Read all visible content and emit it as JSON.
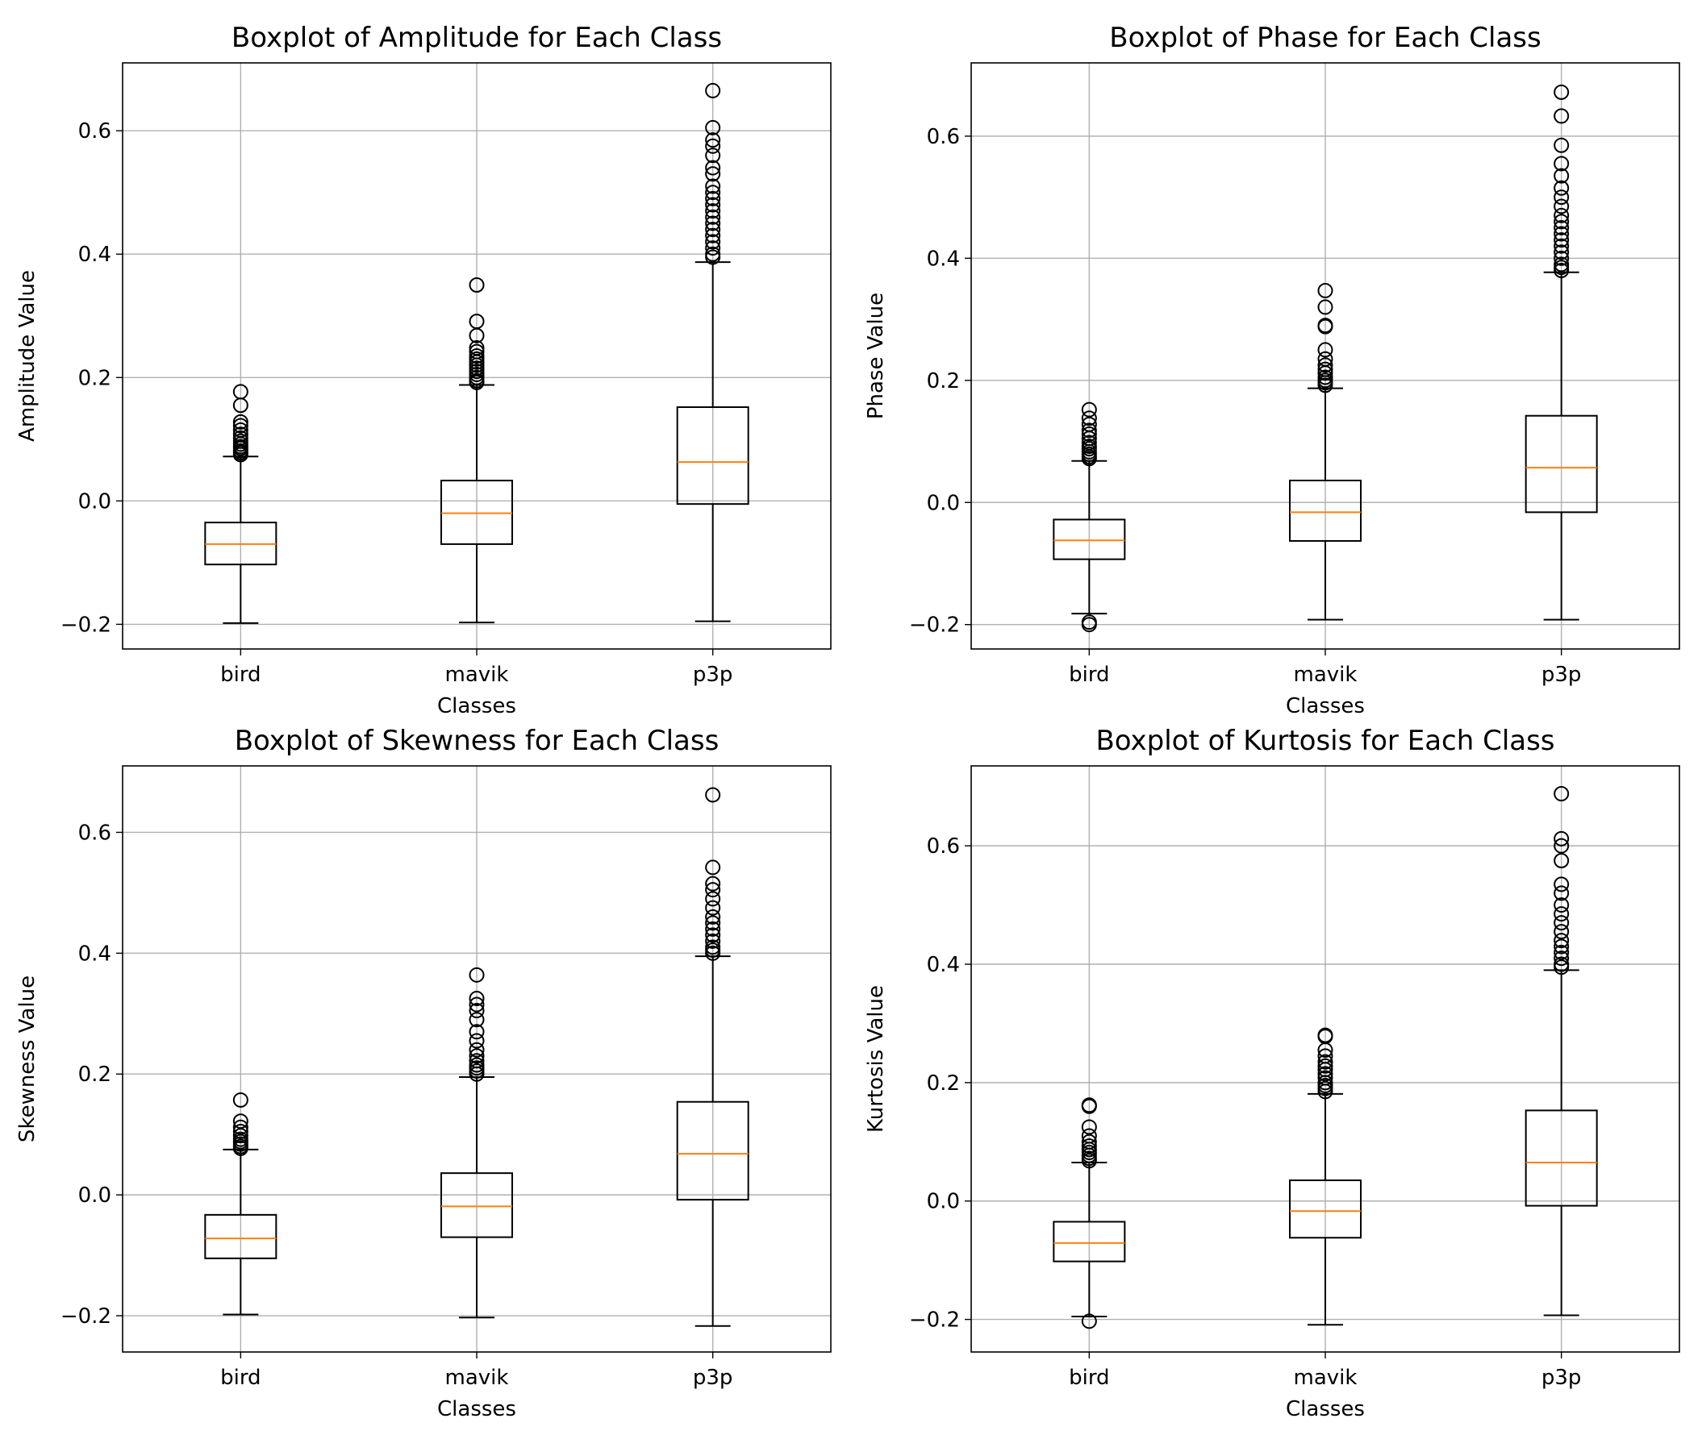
{
  "figure": {
    "background": "#ffffff"
  },
  "style": {
    "median_color": "#ff7f0e",
    "box_color": "#000000",
    "grid_color": "#b0b0b0",
    "flier_color": "#000000"
  },
  "chart_data": [
    {
      "type": "boxplot",
      "title": "Boxplot of Amplitude for Each Class",
      "xlabel": "Classes",
      "ylabel": "Amplitude Value",
      "ylim": [
        -0.24,
        0.71
      ],
      "yticks": [
        -0.2,
        0.0,
        0.2,
        0.4,
        0.6
      ],
      "yticklabels": [
        "−0.2",
        "0.0",
        "0.2",
        "0.4",
        "0.6"
      ],
      "grid": true,
      "categories": [
        "bird",
        "mavik",
        "p3p"
      ],
      "boxes": [
        {
          "whislo": -0.198,
          "q1": -0.103,
          "med": -0.07,
          "q3": -0.035,
          "whishi": 0.072,
          "fliers": [
            0.177,
            0.155,
            0.128,
            0.122,
            0.115,
            0.108,
            0.102,
            0.097,
            0.092,
            0.088,
            0.085,
            0.081,
            0.078,
            0.075
          ]
        },
        {
          "whislo": -0.197,
          "q1": -0.07,
          "med": -0.02,
          "q3": 0.033,
          "whishi": 0.188,
          "fliers": [
            0.35,
            0.291,
            0.268,
            0.248,
            0.242,
            0.235,
            0.23,
            0.225,
            0.22,
            0.215,
            0.21,
            0.205,
            0.2,
            0.195,
            0.192
          ]
        },
        {
          "whislo": -0.195,
          "q1": -0.005,
          "med": 0.063,
          "q3": 0.152,
          "whishi": 0.387,
          "fliers": [
            0.665,
            0.605,
            0.585,
            0.575,
            0.56,
            0.54,
            0.53,
            0.51,
            0.5,
            0.49,
            0.48,
            0.47,
            0.46,
            0.45,
            0.44,
            0.43,
            0.42,
            0.41,
            0.4,
            0.395
          ]
        }
      ]
    },
    {
      "type": "boxplot",
      "title": "Boxplot of Phase for Each Class",
      "xlabel": "Classes",
      "ylabel": "Phase Value",
      "ylim": [
        -0.24,
        0.72
      ],
      "yticks": [
        -0.2,
        0.0,
        0.2,
        0.4,
        0.6
      ],
      "yticklabels": [
        "−0.2",
        "0.0",
        "0.2",
        "0.4",
        "0.6"
      ],
      "grid": true,
      "categories": [
        "bird",
        "mavik",
        "p3p"
      ],
      "boxes": [
        {
          "whislo": -0.182,
          "q1": -0.093,
          "med": -0.062,
          "q3": -0.028,
          "whishi": 0.068,
          "fliers": [
            -0.196,
            -0.2,
            0.152,
            0.138,
            0.128,
            0.118,
            0.112,
            0.105,
            0.098,
            0.092,
            0.088,
            0.083,
            0.079,
            0.075,
            0.072
          ]
        },
        {
          "whislo": -0.192,
          "q1": -0.063,
          "med": -0.016,
          "q3": 0.036,
          "whishi": 0.187,
          "fliers": [
            0.347,
            0.32,
            0.29,
            0.288,
            0.25,
            0.235,
            0.225,
            0.218,
            0.212,
            0.205,
            0.2,
            0.196,
            0.192
          ]
        },
        {
          "whislo": -0.192,
          "q1": -0.016,
          "med": 0.057,
          "q3": 0.142,
          "whishi": 0.377,
          "fliers": [
            0.672,
            0.633,
            0.585,
            0.555,
            0.535,
            0.515,
            0.5,
            0.485,
            0.47,
            0.46,
            0.45,
            0.44,
            0.43,
            0.42,
            0.41,
            0.4,
            0.39,
            0.385,
            0.38
          ]
        }
      ]
    },
    {
      "type": "boxplot",
      "title": "Boxplot of Skewness for Each Class",
      "xlabel": "Classes",
      "ylabel": "Skewness Value",
      "ylim": [
        -0.26,
        0.71
      ],
      "yticks": [
        -0.2,
        0.0,
        0.2,
        0.4,
        0.6
      ],
      "yticklabels": [
        "−0.2",
        "0.0",
        "0.2",
        "0.4",
        "0.6"
      ],
      "grid": true,
      "categories": [
        "bird",
        "mavik",
        "p3p"
      ],
      "boxes": [
        {
          "whislo": -0.198,
          "q1": -0.105,
          "med": -0.072,
          "q3": -0.033,
          "whishi": 0.075,
          "fliers": [
            0.157,
            0.122,
            0.112,
            0.105,
            0.098,
            0.092,
            0.088,
            0.084,
            0.08,
            0.077
          ]
        },
        {
          "whislo": -0.203,
          "q1": -0.07,
          "med": -0.019,
          "q3": 0.036,
          "whishi": 0.195,
          "fliers": [
            0.364,
            0.325,
            0.315,
            0.305,
            0.29,
            0.27,
            0.255,
            0.24,
            0.23,
            0.222,
            0.215,
            0.21,
            0.205,
            0.2
          ]
        },
        {
          "whislo": -0.217,
          "q1": -0.008,
          "med": 0.068,
          "q3": 0.154,
          "whishi": 0.395,
          "fliers": [
            0.662,
            0.542,
            0.515,
            0.505,
            0.49,
            0.475,
            0.46,
            0.45,
            0.44,
            0.43,
            0.42,
            0.41,
            0.405,
            0.4
          ]
        }
      ]
    },
    {
      "type": "boxplot",
      "title": "Boxplot of Kurtosis for Each Class",
      "xlabel": "Classes",
      "ylabel": "Kurtosis Value",
      "ylim": [
        -0.255,
        0.735
      ],
      "yticks": [
        -0.2,
        0.0,
        0.2,
        0.4,
        0.6
      ],
      "yticklabels": [
        "−0.2",
        "0.0",
        "0.2",
        "0.4",
        "0.6"
      ],
      "grid": true,
      "categories": [
        "bird",
        "mavik",
        "p3p"
      ],
      "boxes": [
        {
          "whislo": -0.195,
          "q1": -0.102,
          "med": -0.071,
          "q3": -0.035,
          "whishi": 0.065,
          "fliers": [
            -0.203,
            0.162,
            0.16,
            0.125,
            0.11,
            0.1,
            0.093,
            0.087,
            0.082,
            0.077,
            0.072,
            0.068
          ]
        },
        {
          "whislo": -0.209,
          "q1": -0.062,
          "med": -0.017,
          "q3": 0.035,
          "whishi": 0.181,
          "fliers": [
            0.28,
            0.278,
            0.255,
            0.245,
            0.235,
            0.228,
            0.222,
            0.215,
            0.208,
            0.2,
            0.195,
            0.19,
            0.185
          ]
        },
        {
          "whislo": -0.193,
          "q1": -0.008,
          "med": 0.065,
          "q3": 0.153,
          "whishi": 0.39,
          "fliers": [
            0.688,
            0.612,
            0.6,
            0.575,
            0.535,
            0.52,
            0.5,
            0.485,
            0.47,
            0.455,
            0.44,
            0.43,
            0.42,
            0.41,
            0.4,
            0.395
          ]
        }
      ]
    }
  ]
}
